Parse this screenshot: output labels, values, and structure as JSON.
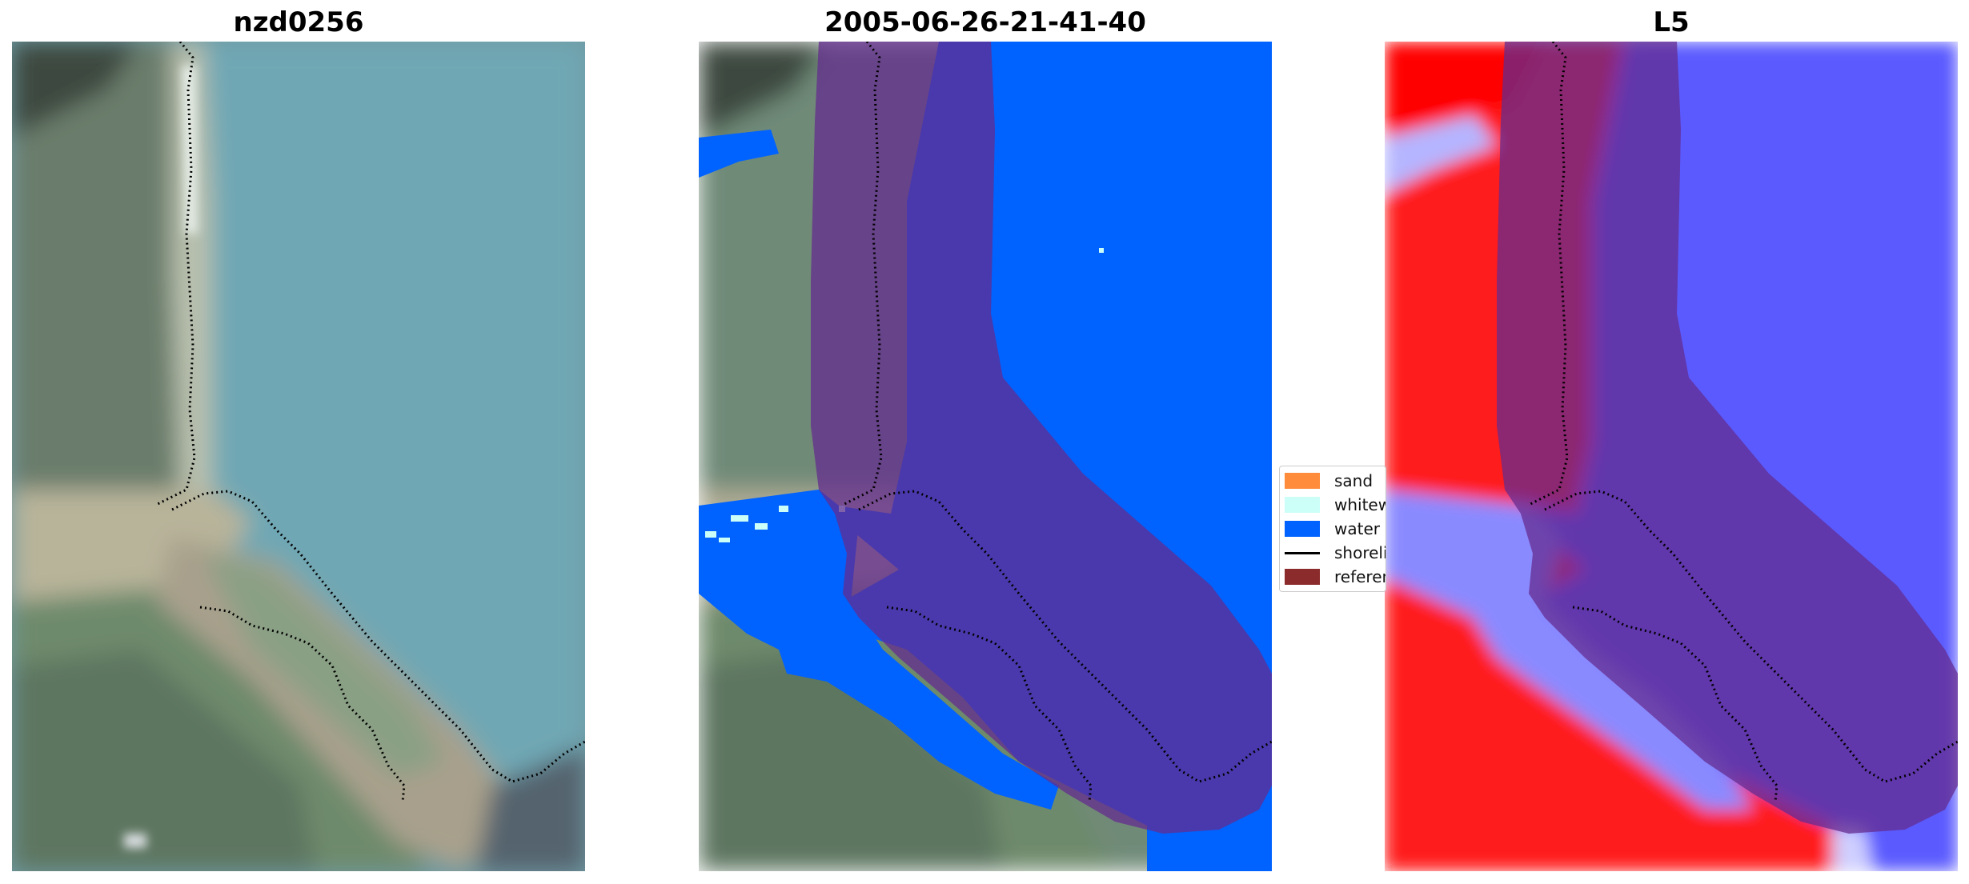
{
  "panels": [
    {
      "title": "nzd0256"
    },
    {
      "title": "2005-06-26-21-41-40"
    },
    {
      "title": "L5"
    }
  ],
  "legend": {
    "items": [
      {
        "label": "sand",
        "color": "#ff8c3a"
      },
      {
        "label": "whitewater",
        "color": "#ccfff8"
      },
      {
        "label": "water",
        "color": "#0062ff"
      },
      {
        "label": "shoreline",
        "color": "#000000"
      },
      {
        "label": "reference shoreline buffer",
        "color": "#8b2b2b"
      }
    ]
  },
  "colors": {
    "buffer": "#8b2b2b",
    "water_class": "#0062ff",
    "index_positive": "#ff1a1a",
    "index_negative": "#3a3aff"
  }
}
